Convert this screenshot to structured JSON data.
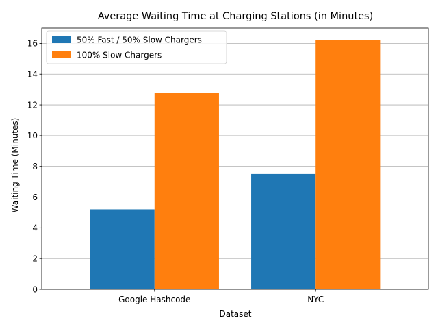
{
  "chart_data": {
    "type": "bar",
    "title": "Average Waiting Time at Charging Stations (in Minutes)",
    "xlabel": "Dataset",
    "ylabel": "Waiting Time (Minutes)",
    "categories": [
      "Google Hashcode",
      "NYC"
    ],
    "series": [
      {
        "name": "50% Fast / 50% Slow Chargers",
        "values": [
          5.2,
          7.5
        ],
        "color": "#1f77b4"
      },
      {
        "name": "100% Slow Chargers",
        "values": [
          12.8,
          16.2
        ],
        "color": "#ff7f0e"
      }
    ],
    "ylim": [
      0,
      17
    ],
    "yticks": [
      0,
      2,
      4,
      6,
      8,
      10,
      12,
      14,
      16
    ],
    "grid": "horizontal",
    "legend_position": "top-left"
  }
}
